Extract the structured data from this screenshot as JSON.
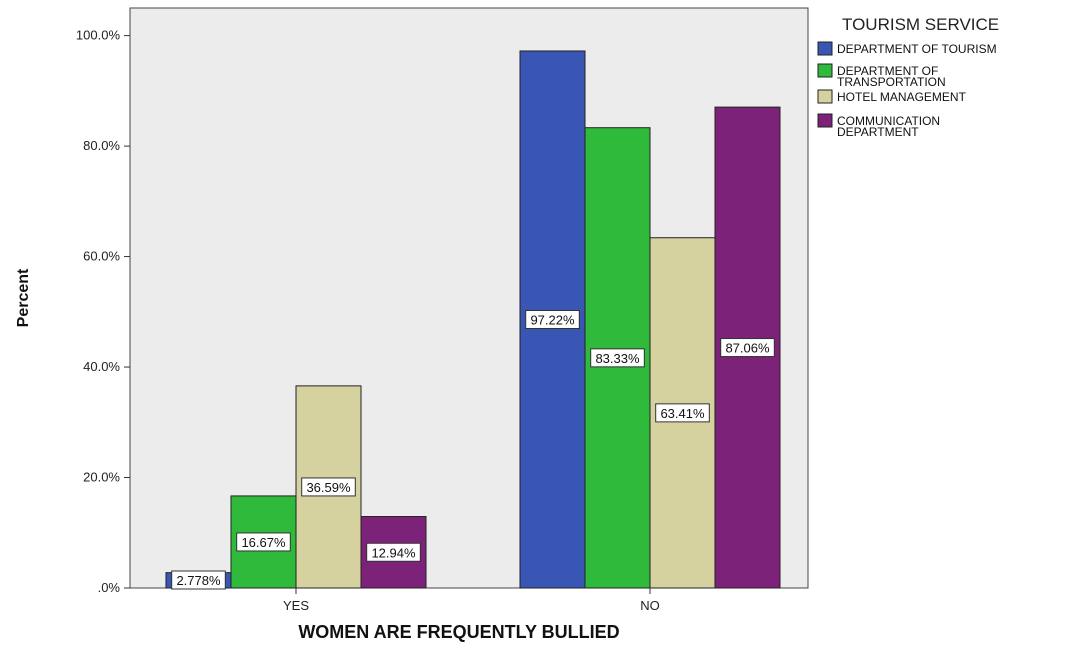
{
  "chart_data": {
    "type": "bar",
    "title": "",
    "xlabel": "WOMEN ARE FREQUENTLY BULLIED",
    "ylabel": "Percent",
    "categories": [
      "YES",
      "NO"
    ],
    "ylim": [
      0,
      105
    ],
    "yticks": [
      0,
      20,
      40,
      60,
      80,
      100
    ],
    "ytick_labels": [
      ".0%",
      "20.0%",
      "40.0%",
      "60.0%",
      "80.0%",
      "100.0%"
    ],
    "grid": false,
    "legend": {
      "title": "TOURISM SERVICE",
      "placement": "right",
      "entries": [
        [
          "DEPARTMENT OF TOURISM"
        ],
        [
          "DEPARTMENT OF",
          "TRANSPORTATION"
        ],
        [
          "HOTEL MANAGEMENT"
        ],
        [
          "COMMUNICATION",
          "DEPARTMENT"
        ]
      ]
    },
    "series": [
      {
        "name": "DEPARTMENT OF TOURISM",
        "color": "#3a56b4",
        "values": [
          2.778,
          97.22
        ],
        "labels": [
          "2.778%",
          "97.22%"
        ]
      },
      {
        "name": "DEPARTMENT OF TRANSPORTATION",
        "color": "#2fba3c",
        "values": [
          16.67,
          83.33
        ],
        "labels": [
          "16.67%",
          "83.33%"
        ]
      },
      {
        "name": "HOTEL MANAGEMENT",
        "color": "#d6d2a0",
        "values": [
          36.59,
          63.41
        ],
        "labels": [
          "36.59%",
          "63.41%"
        ]
      },
      {
        "name": "COMMUNICATION DEPARTMENT",
        "color": "#7c2279",
        "values": [
          12.94,
          87.06
        ],
        "labels": [
          "12.94%",
          "87.06%"
        ]
      }
    ],
    "plot_background": "#ececec"
  }
}
